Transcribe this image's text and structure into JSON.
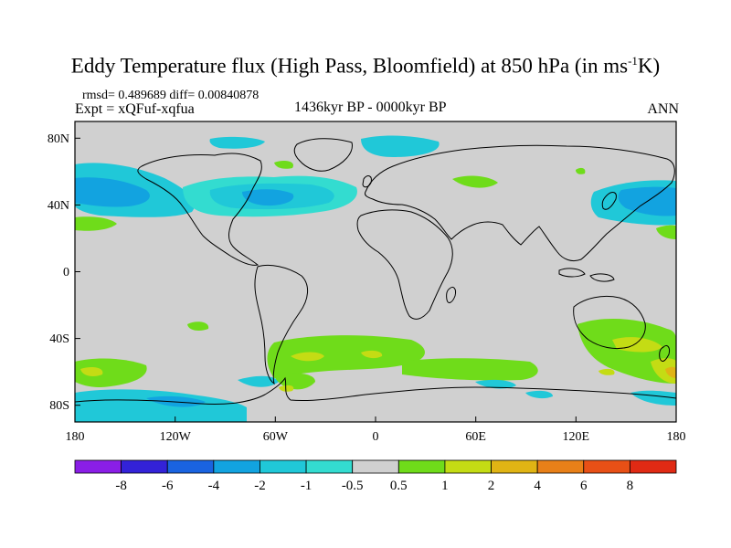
{
  "title": {
    "main": "Eddy Temperature flux (High Pass, Bloomfield) at 850 hPa (in ms",
    "sup": "-1",
    "end": "K)"
  },
  "stats": "rmsd= 0.489689 diff= 0.00840878",
  "expt": "Expt = xQFuf-xqfua",
  "period": "1436kyr BP - 0000kyr BP",
  "season": "ANN",
  "axes": {
    "x_ticks": [
      "180",
      "120W",
      "60W",
      "0",
      "60E",
      "120E",
      "180"
    ],
    "y_ticks": [
      "80N",
      "40N",
      "0",
      "40S",
      "80S"
    ]
  },
  "colorbar": {
    "labels": [
      "-8",
      "-6",
      "-4",
      "-2",
      "-1",
      "-0.5",
      "0.5",
      "1",
      "2",
      "4",
      "6",
      "8"
    ],
    "colors": [
      "#8a1ee6",
      "#3322d8",
      "#1a63e0",
      "#12a3e0",
      "#20c8d8",
      "#33dcd0",
      "#d0d0d0",
      "#6fdc1a",
      "#c4dc14",
      "#e0b414",
      "#e88018",
      "#e85016",
      "#e02a14"
    ]
  },
  "colors": {
    "background": "#d0d0d0",
    "coastline": "#000000"
  }
}
